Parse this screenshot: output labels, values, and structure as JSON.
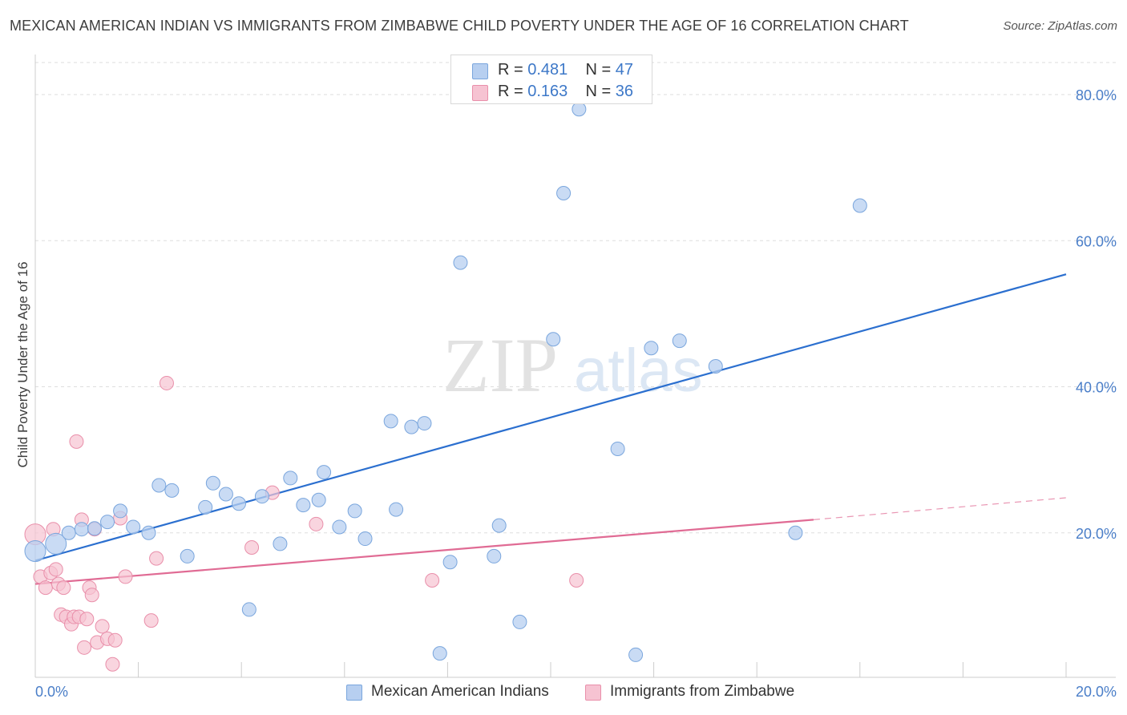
{
  "header": {
    "title": "MEXICAN AMERICAN INDIAN VS IMMIGRANTS FROM ZIMBABWE CHILD POVERTY UNDER THE AGE OF 16 CORRELATION CHART",
    "source": "Source: ZipAtlas.com"
  },
  "watermark": {
    "zip": "ZIP",
    "atlas": "atlas"
  },
  "legend_top": {
    "rows": [
      {
        "r_label": "R = ",
        "r_value": "0.481",
        "n_label": "N = ",
        "n_value": "47"
      },
      {
        "r_label": "R = ",
        "r_value": "0.163",
        "n_label": "N = ",
        "n_value": "36"
      }
    ]
  },
  "legend_bottom": {
    "items": [
      "Mexican American Indians",
      "Immigrants from Zimbabwe"
    ]
  },
  "colors": {
    "blue_fill": "#b7cff0",
    "blue_stroke": "#7aa6dd",
    "blue_line": "#2b6fcf",
    "pink_fill": "#f6c3d2",
    "pink_stroke": "#e98faa",
    "pink_line": "#e06b94",
    "grid": "#dddddd",
    "tick_text": "#4a7ec8"
  },
  "chart_data": {
    "type": "scatter",
    "title": "MEXICAN AMERICAN INDIAN VS IMMIGRANTS FROM ZIMBABWE CHILD POVERTY UNDER THE AGE OF 16 CORRELATION CHART",
    "xlabel": "",
    "ylabel": "Child Poverty Under the Age of 16",
    "xlim": [
      0,
      20
    ],
    "ylim": [
      0,
      80
    ],
    "x_tick_labels": [
      "0.0%",
      "20.0%"
    ],
    "y_ticks": [
      20,
      40,
      60,
      80
    ],
    "y_tick_labels": [
      "20.0%",
      "40.0%",
      "60.0%",
      "80.0%"
    ],
    "grid": true,
    "series": [
      {
        "name": "Mexican American Indians",
        "R": 0.481,
        "N": 47,
        "trend": {
          "x": [
            0,
            20
          ],
          "y": [
            16.2,
            55.4
          ]
        },
        "points": [
          [
            0.0,
            17.5
          ],
          [
            0.4,
            18.5
          ],
          [
            0.65,
            20.0
          ],
          [
            0.9,
            20.5
          ],
          [
            1.15,
            20.6
          ],
          [
            1.4,
            21.5
          ],
          [
            1.65,
            23.0
          ],
          [
            1.9,
            20.8
          ],
          [
            2.2,
            20.0
          ],
          [
            2.4,
            26.5
          ],
          [
            2.65,
            25.8
          ],
          [
            2.95,
            16.8
          ],
          [
            3.3,
            23.5
          ],
          [
            3.45,
            26.8
          ],
          [
            3.7,
            25.3
          ],
          [
            3.95,
            24.0
          ],
          [
            4.15,
            9.5
          ],
          [
            4.4,
            25.0
          ],
          [
            4.75,
            18.5
          ],
          [
            4.95,
            27.5
          ],
          [
            5.2,
            23.8
          ],
          [
            5.5,
            24.5
          ],
          [
            5.6,
            28.3
          ],
          [
            5.9,
            20.8
          ],
          [
            6.2,
            23.0
          ],
          [
            6.4,
            19.2
          ],
          [
            6.9,
            35.3
          ],
          [
            7.0,
            23.2
          ],
          [
            7.3,
            34.5
          ],
          [
            7.55,
            35.0
          ],
          [
            7.85,
            3.5
          ],
          [
            8.05,
            16.0
          ],
          [
            8.25,
            57.0
          ],
          [
            8.9,
            16.8
          ],
          [
            9.0,
            21.0
          ],
          [
            9.4,
            7.8
          ],
          [
            10.05,
            46.5
          ],
          [
            10.25,
            66.5
          ],
          [
            10.55,
            78.0
          ],
          [
            11.3,
            31.5
          ],
          [
            11.65,
            3.3
          ],
          [
            11.95,
            45.3
          ],
          [
            12.5,
            46.3
          ],
          [
            13.2,
            42.8
          ],
          [
            14.75,
            20.0
          ],
          [
            16.0,
            64.8
          ]
        ]
      },
      {
        "name": "Immigrants from Zimbabwe",
        "R": 0.163,
        "N": 36,
        "trend": {
          "x": [
            0,
            15.1
          ],
          "y": [
            13.0,
            21.8
          ]
        },
        "trend_dashed": {
          "x": [
            15.1,
            20
          ],
          "y": [
            21.8,
            24.8
          ]
        },
        "points": [
          [
            0.0,
            19.8
          ],
          [
            0.1,
            14.0
          ],
          [
            0.2,
            12.5
          ],
          [
            0.3,
            14.5
          ],
          [
            0.35,
            20.5
          ],
          [
            0.4,
            15.0
          ],
          [
            0.45,
            13.0
          ],
          [
            0.5,
            8.8
          ],
          [
            0.55,
            12.5
          ],
          [
            0.6,
            8.5
          ],
          [
            0.7,
            7.5
          ],
          [
            0.75,
            8.5
          ],
          [
            0.8,
            32.5
          ],
          [
            0.85,
            8.5
          ],
          [
            0.9,
            21.8
          ],
          [
            0.95,
            4.3
          ],
          [
            1.0,
            8.2
          ],
          [
            1.05,
            12.5
          ],
          [
            1.1,
            11.5
          ],
          [
            1.15,
            20.5
          ],
          [
            1.2,
            5.0
          ],
          [
            1.3,
            7.2
          ],
          [
            1.4,
            5.5
          ],
          [
            1.5,
            2.0
          ],
          [
            1.55,
            5.3
          ],
          [
            1.65,
            22.0
          ],
          [
            1.75,
            14.0
          ],
          [
            2.25,
            8.0
          ],
          [
            2.35,
            16.5
          ],
          [
            2.55,
            40.5
          ],
          [
            4.2,
            18.0
          ],
          [
            4.6,
            25.5
          ],
          [
            5.45,
            21.2
          ],
          [
            7.7,
            13.5
          ],
          [
            10.5,
            13.5
          ]
        ]
      }
    ]
  }
}
